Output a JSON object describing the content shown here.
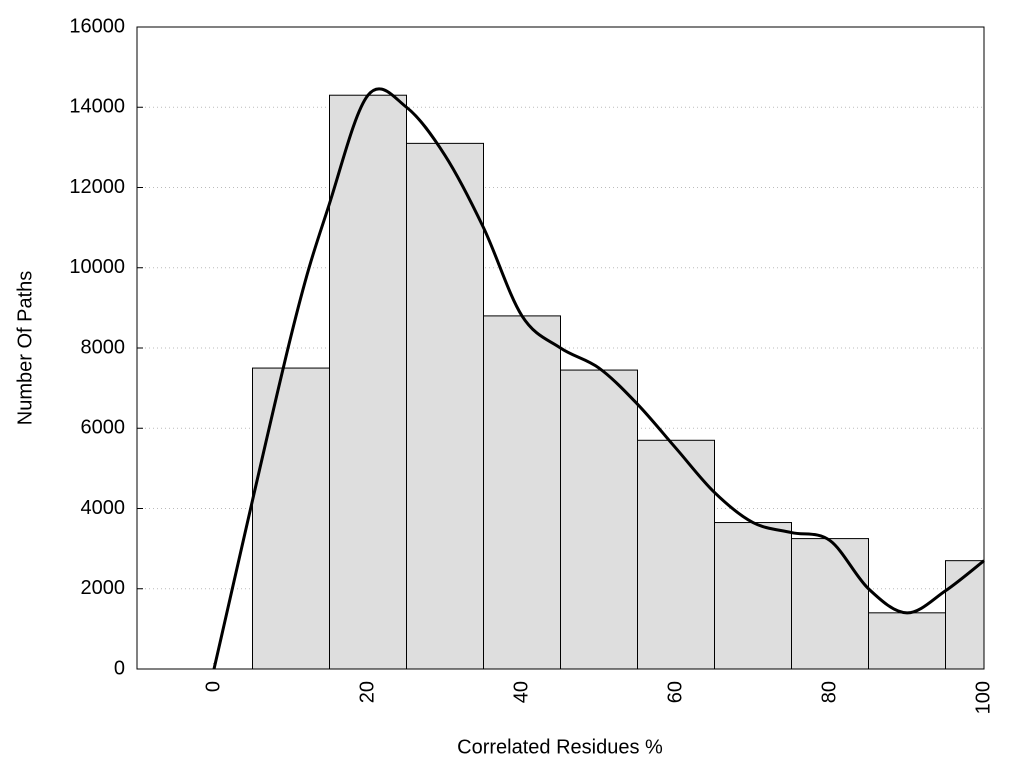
{
  "chart_data": {
    "type": "histogram",
    "x_label": "Correlated Residues %",
    "y_label": "Number Of Paths",
    "bins": [
      5,
      15,
      25,
      35,
      45,
      55,
      65,
      75,
      85,
      95,
      100
    ],
    "values": [
      7500,
      14300,
      13100,
      8800,
      7450,
      5700,
      3650,
      3250,
      1400,
      2700
    ],
    "color": "#dedede",
    "curve": {
      "color": "#000000",
      "x": [
        0,
        10,
        15,
        20,
        25,
        30,
        35,
        40,
        45,
        50,
        55,
        60,
        65,
        70,
        75,
        80,
        85,
        90,
        95,
        100
      ],
      "values": [
        0,
        8300,
        11600,
        14300,
        14000,
        12800,
        11000,
        8800,
        8000,
        7500,
        6600,
        5500,
        4400,
        3650,
        3400,
        3200,
        2000,
        1400,
        1950,
        2700
      ]
    },
    "xlim": [
      -10,
      100
    ],
    "xticks": [
      0,
      20,
      40,
      60,
      80,
      100
    ],
    "ylim": [
      0,
      16000
    ],
    "yticks": [
      0,
      2000,
      4000,
      6000,
      8000,
      10000,
      12000,
      14000,
      16000
    ],
    "grid": true
  }
}
